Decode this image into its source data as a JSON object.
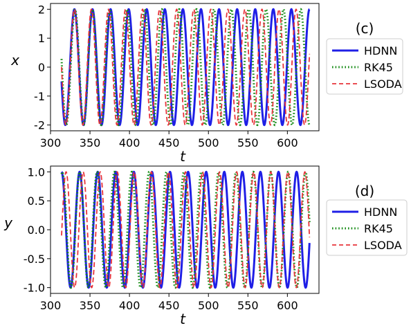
{
  "chart_data": [
    {
      "type": "line",
      "panel_label": "(c)",
      "xlabel": "t",
      "ylabel": "x",
      "xlim": [
        300,
        640
      ],
      "ylim": [
        -2.2,
        2.2
      ],
      "xticks": [
        300,
        350,
        400,
        450,
        500,
        550,
        600
      ],
      "yticks": [
        -2,
        -1,
        0,
        1,
        2
      ],
      "x_range": [
        314,
        628
      ],
      "grid": false,
      "legend_position": "right",
      "series": [
        {
          "name": "HDNN",
          "color": "#1f1fe6",
          "style": "solid",
          "amplitude": 2.0,
          "period": 22.9,
          "phase": 3.39
        },
        {
          "name": "RK45",
          "color": "#138a13",
          "style": "dotted",
          "amplitude": 2.0,
          "period": 22.0,
          "phase": 3.0
        },
        {
          "name": "LSODA",
          "color": "#e8333a",
          "style": "dashed",
          "amplitude": 2.0,
          "period": 21.6,
          "phase": 3.14
        }
      ]
    },
    {
      "type": "line",
      "panel_label": "(d)",
      "xlabel": "t",
      "ylabel": "y",
      "xlim": [
        300,
        640
      ],
      "ylim": [
        -1.1,
        1.1
      ],
      "xticks": [
        300,
        350,
        400,
        450,
        500,
        550,
        600
      ],
      "yticks": [
        -1.0,
        -0.5,
        0.0,
        0.5,
        1.0
      ],
      "x_range": [
        314,
        628
      ],
      "grid": false,
      "legend_position": "right",
      "series": [
        {
          "name": "HDNN",
          "color": "#1f1fe6",
          "style": "solid",
          "amplitude": 1.0,
          "period": 22.9,
          "phase": 1.58
        },
        {
          "name": "RK45",
          "color": "#138a13",
          "style": "dotted",
          "amplitude": 1.0,
          "period": 22.0,
          "phase": 1.3
        },
        {
          "name": "LSODA",
          "color": "#e8333a",
          "style": "dashed",
          "amplitude": 1.0,
          "period": 21.6,
          "phase": -0.1
        }
      ]
    }
  ]
}
